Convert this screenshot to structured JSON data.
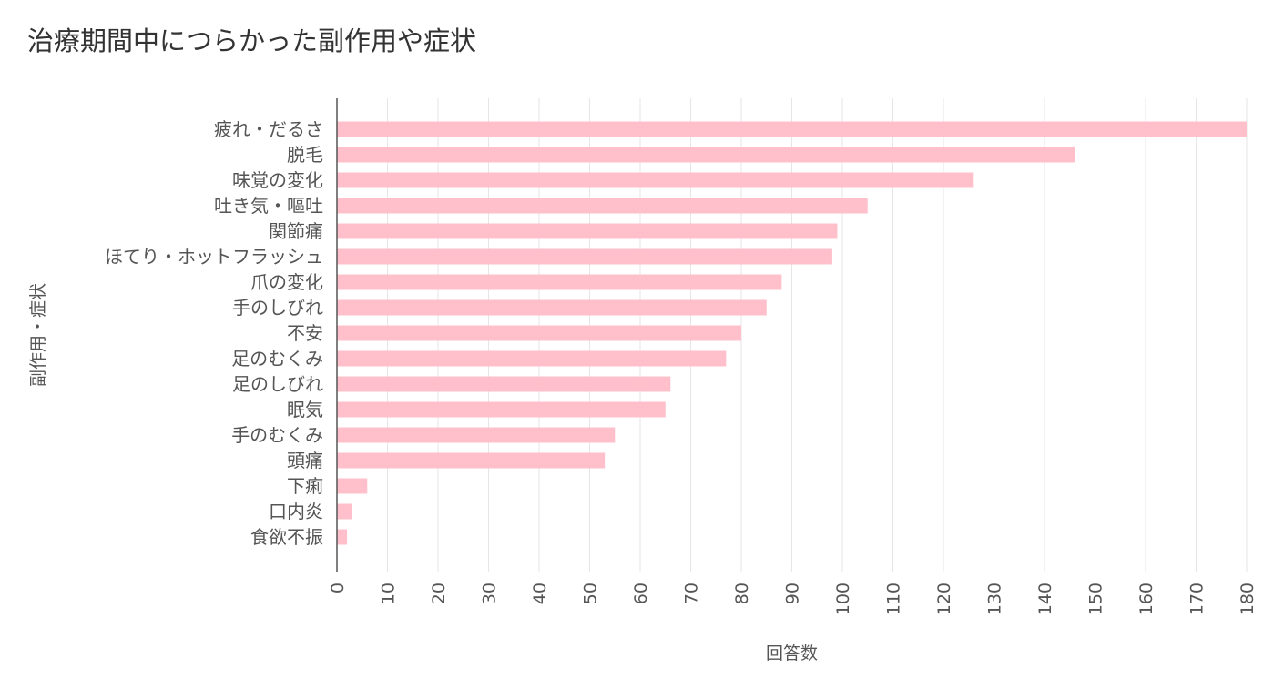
{
  "chart_data": {
    "type": "bar",
    "orientation": "horizontal",
    "title": "治療期間中につらかった副作用や症状",
    "xlabel": "回答数",
    "ylabel": "副作用・症状",
    "xlim": [
      0,
      180
    ],
    "xticks": [
      0,
      10,
      20,
      30,
      40,
      50,
      60,
      70,
      80,
      90,
      100,
      110,
      120,
      130,
      140,
      150,
      160,
      170,
      180
    ],
    "grid": true,
    "bar_color": "#ffc0cb",
    "categories": [
      "疲れ・だるさ",
      "脱毛",
      "味覚の変化",
      "吐き気・嘔吐",
      "関節痛",
      "ほてり・ホットフラッシュ",
      "爪の変化",
      "手のしびれ",
      "不安",
      "足のむくみ",
      "足のしびれ",
      "眠気",
      "手のむくみ",
      "頭痛",
      "下痢",
      "口内炎",
      "食欲不振"
    ],
    "values": [
      180,
      146,
      126,
      105,
      99,
      98,
      88,
      85,
      80,
      77,
      66,
      65,
      55,
      53,
      6,
      3,
      2
    ]
  }
}
